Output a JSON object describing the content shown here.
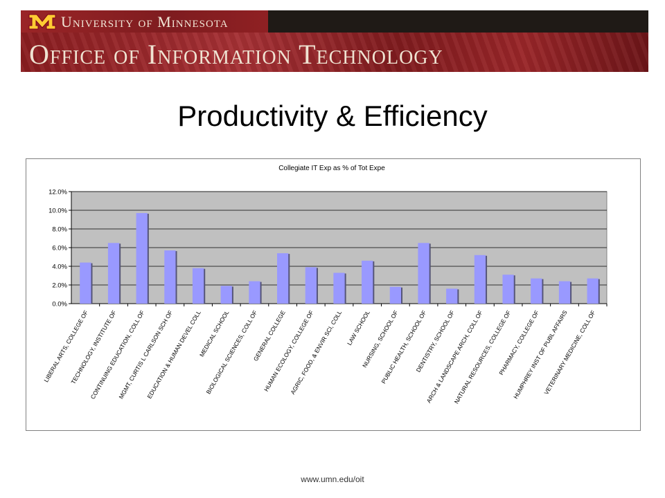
{
  "header": {
    "university": "University of Minnesota",
    "office": "Office of Information Technology",
    "colors": {
      "maroon": "#7a0019",
      "gold": "#ffcc33"
    }
  },
  "slide": {
    "title": "Productivity & Efficiency",
    "footer": "www.umn.edu/oit"
  },
  "chart_data": {
    "type": "bar",
    "title": "Collegiate IT Exp as % of Tot Expe",
    "xlabel": "",
    "ylabel": "",
    "ylim": [
      0,
      12
    ],
    "yticks": [
      "0.0%",
      "2.0%",
      "4.0%",
      "6.0%",
      "8.0%",
      "10.0%",
      "12.0%"
    ],
    "grid": true,
    "legend": "none",
    "bar_color": "#9999ff",
    "plot_background": "#c0c0c0",
    "categories": [
      "LIBERAL ARTS, COLLEGE OF",
      "TECHNOLOGY, INSTITUTE OF",
      "CONTINUING EDUCATION, COLL OF",
      "MGMT, CURTIS L CARLSON SCH OF",
      "EDUCATION & HUMAN DEVEL COLL",
      "MEDICAL SCHOOL",
      "BIOLOGICAL SCIENCES, COLL OF",
      "GENERAL COLLEGE",
      "HUMAN ECOLOGY, COLLEGE OF",
      "AGRIC, FOOD, & ENVIR SCI, COLL",
      "LAW SCHOOL",
      "NURSING, SCHOOL OF",
      "PUBLIC HEALTH, SCHOOL OF",
      "DENTISTRY, SCHOOL OF",
      "ARCH & LANDSCAPE ARCH, COLL OF",
      "NATURAL RESOURCES, COLLEGE OF",
      "PHARMACY, COLLEGE OF",
      "HUMPHREY INST OF PUBL AFFAIRS",
      "VETERINARY MEDICINE, COLL OF"
    ],
    "values": [
      4.4,
      6.5,
      9.7,
      5.7,
      3.8,
      1.9,
      2.4,
      5.4,
      3.9,
      3.3,
      4.6,
      1.8,
      6.5,
      1.6,
      5.2,
      3.1,
      2.7,
      2.4,
      2.7
    ]
  }
}
